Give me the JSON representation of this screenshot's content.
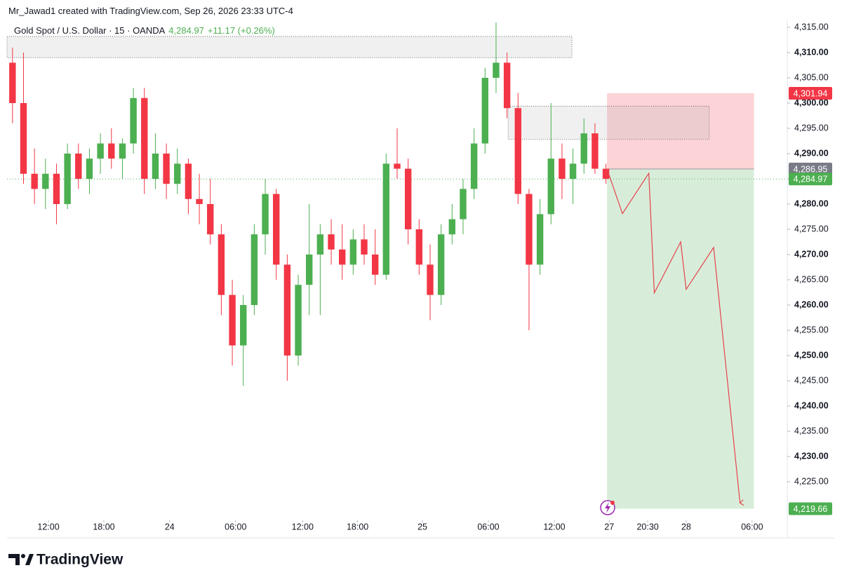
{
  "header": {
    "attribution": "Mr_Jawad1 created with TradingView.com, Sep 26, 2026 23:33 UTC-4"
  },
  "footer": {
    "brand": "TradingView"
  },
  "chart_data": {
    "type": "candlestick",
    "title": "Gold Spot / U.S. Dollar · 15 · OANDA",
    "last_price": {
      "value": 4284.97,
      "label": "4,284.97"
    },
    "change": "+11.17 (+0.26%)",
    "up_color": "#4caf50",
    "down_color": "#f23645",
    "ohlc": [
      [
        4308,
        4311,
        4296,
        4300
      ],
      [
        4300,
        4310,
        4284,
        4286
      ],
      [
        4286,
        4291,
        4280,
        4283
      ],
      [
        4283,
        4289,
        4279,
        4286
      ],
      [
        4286,
        4288,
        4276,
        4280
      ],
      [
        4280,
        4292,
        4279,
        4290
      ],
      [
        4290,
        4292,
        4283,
        4285
      ],
      [
        4285,
        4291,
        4282,
        4289
      ],
      [
        4289,
        4294,
        4286,
        4292
      ],
      [
        4292,
        4295,
        4287,
        4289
      ],
      [
        4289,
        4293,
        4285,
        4292
      ],
      [
        4292,
        4303,
        4290,
        4301
      ],
      [
        4301,
        4303,
        4282,
        4285
      ],
      [
        4285,
        4294,
        4283,
        4290
      ],
      [
        4290,
        4292,
        4281,
        4284
      ],
      [
        4284,
        4291,
        4282,
        4288
      ],
      [
        4288,
        4289,
        4278,
        4281
      ],
      [
        4281,
        4286,
        4276,
        4280
      ],
      [
        4280,
        4285,
        4272,
        4274
      ],
      [
        4274,
        4276,
        4258,
        4262
      ],
      [
        4262,
        4265,
        4248,
        4252
      ],
      [
        4252,
        4262,
        4244,
        4260
      ],
      [
        4260,
        4276,
        4258,
        4274
      ],
      [
        4274,
        4285,
        4270,
        4282
      ],
      [
        4282,
        4283,
        4265,
        4268
      ],
      [
        4268,
        4270,
        4245,
        4250
      ],
      [
        4250,
        4266,
        4248,
        4264
      ],
      [
        4264,
        4280,
        4258,
        4270
      ],
      [
        4270,
        4276,
        4258,
        4274
      ],
      [
        4274,
        4277,
        4268,
        4271
      ],
      [
        4271,
        4276,
        4265,
        4268
      ],
      [
        4268,
        4275,
        4266,
        4273
      ],
      [
        4273,
        4276,
        4268,
        4270
      ],
      [
        4270,
        4275,
        4264,
        4266
      ],
      [
        4266,
        4290,
        4265,
        4288
      ],
      [
        4288,
        4295,
        4285,
        4287
      ],
      [
        4287,
        4289,
        4272,
        4275
      ],
      [
        4275,
        4277,
        4266,
        4268
      ],
      [
        4268,
        4272,
        4257,
        4262
      ],
      [
        4262,
        4276,
        4260,
        4274
      ],
      [
        4274,
        4280,
        4272,
        4277
      ],
      [
        4277,
        4285,
        4274,
        4283
      ],
      [
        4283,
        4295,
        4281,
        4292
      ],
      [
        4292,
        4307,
        4290,
        4305
      ],
      [
        4305,
        4316,
        4302,
        4308
      ],
      [
        4308,
        4310,
        4297,
        4299
      ],
      [
        4299,
        4302,
        4280,
        4282
      ],
      [
        4282,
        4283,
        4255,
        4268
      ],
      [
        4268,
        4281,
        4266,
        4278
      ],
      [
        4278,
        4300,
        4276,
        4289
      ],
      [
        4289,
        4292,
        4281,
        4285
      ],
      [
        4285,
        4291,
        4280,
        4288
      ],
      [
        4288,
        4297,
        4286,
        4294
      ],
      [
        4294,
        4296,
        4286,
        4287
      ],
      [
        4287,
        4288,
        4284,
        4285
      ]
    ],
    "xlim": [
      0,
      71
    ],
    "xticks": [
      {
        "value": 3.77,
        "label": "12:00"
      },
      {
        "value": 8.81,
        "label": "18:00"
      },
      {
        "value": 14.8,
        "label": "24"
      },
      {
        "value": 20.8,
        "label": "06:00"
      },
      {
        "value": 26.9,
        "label": "12:00"
      },
      {
        "value": 31.9,
        "label": "18:00"
      },
      {
        "value": 37.8,
        "label": "25"
      },
      {
        "value": 43.8,
        "label": "06:00"
      },
      {
        "value": 49.8,
        "label": "12:00"
      },
      {
        "value": 54.8,
        "label": "27"
      },
      {
        "value": 58.3,
        "label": "20:30"
      },
      {
        "value": 61.8,
        "label": "28"
      },
      {
        "value": 67.8,
        "label": "06:00"
      }
    ],
    "ylim": [
      4217.64,
      4316.25
    ],
    "yticks": [
      {
        "value": 4315,
        "label": "4,315.00"
      },
      {
        "value": 4310,
        "label": "4,310.00"
      },
      {
        "value": 4305,
        "label": "4,305.00"
      },
      {
        "value": 4300,
        "label": "4,300.00"
      },
      {
        "value": 4295,
        "label": "4,295.00"
      },
      {
        "value": 4290,
        "label": "4,290.00"
      },
      {
        "value": 4285,
        "label": "4,285.00"
      },
      {
        "value": 4280,
        "label": "4,280.00"
      },
      {
        "value": 4275,
        "label": "4,275.00"
      },
      {
        "value": 4270,
        "label": "4,270.00"
      },
      {
        "value": 4265,
        "label": "4,265.00"
      },
      {
        "value": 4260,
        "label": "4,260.00"
      },
      {
        "value": 4255,
        "label": "4,255.00"
      },
      {
        "value": 4250,
        "label": "4,250.00"
      },
      {
        "value": 4245,
        "label": "4,245.00"
      },
      {
        "value": 4240,
        "label": "4,240.00"
      },
      {
        "value": 4235,
        "label": "4,235.00"
      },
      {
        "value": 4230,
        "label": "4,230.00"
      },
      {
        "value": 4225,
        "label": "4,225.00"
      }
    ],
    "zones": [
      {
        "x": [
          0,
          51.4
        ],
        "y": [
          4309,
          4313.2
        ]
      },
      {
        "x": [
          45.6,
          63.9
        ],
        "y": [
          4292.8,
          4299.4
        ]
      }
    ],
    "position": {
      "x": [
        54.6,
        67.97
      ],
      "stop": {
        "value": 4301.94,
        "label": "4,301.94"
      },
      "entry": {
        "value": 4286.95,
        "label": "4,286.95"
      },
      "target": {
        "value": 4219.66,
        "label": "4,219.66"
      }
    },
    "projection": {
      "color": "#e5434d",
      "x": [
        54.6,
        56,
        58.4,
        58.9,
        61.3,
        61.8,
        64.3,
        66.7
      ],
      "y": [
        4286.95,
        4278.1,
        4286.1,
        4262.4,
        4272.5,
        4263.1,
        4271.4,
        4220.8
      ]
    }
  }
}
